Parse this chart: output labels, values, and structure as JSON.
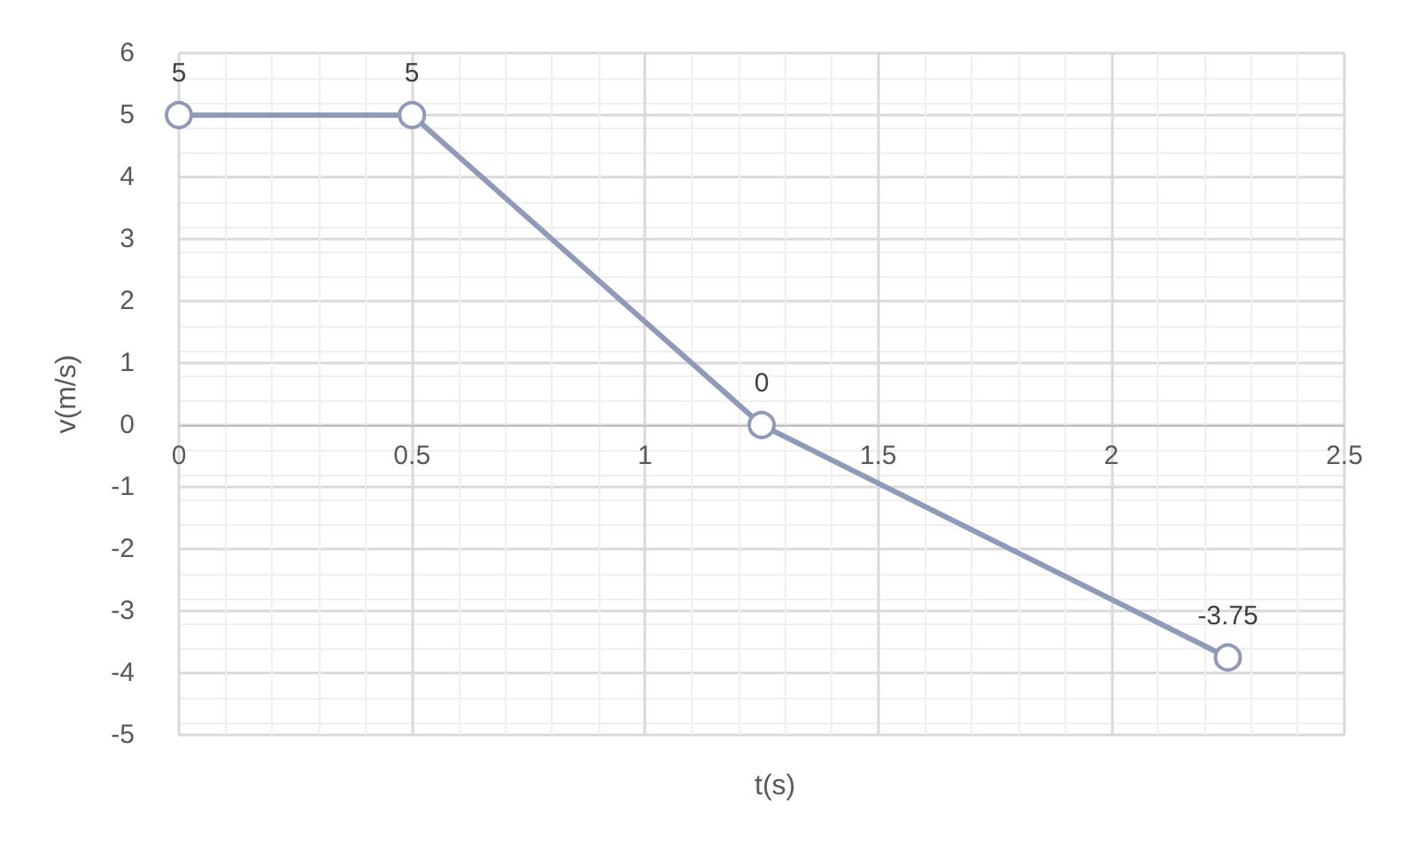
{
  "chart_data": {
    "type": "line",
    "xlabel": "t(s)",
    "ylabel": "v(m/s)",
    "x": [
      0,
      0.5,
      1.25,
      2.25
    ],
    "series": [
      {
        "color": "#8e9ab8",
        "values": [
          5,
          5,
          0,
          -3.75
        ]
      }
    ],
    "xlim": [
      0,
      2.5
    ],
    "xticks": [
      0,
      0.5,
      1,
      1.5,
      2,
      2.5
    ],
    "ylim": [
      -5,
      6
    ],
    "yticks": [
      -5,
      -4,
      -3,
      -2,
      -1,
      0,
      1,
      2,
      3,
      4,
      5,
      6
    ],
    "grid": true,
    "marker": "circle",
    "line_style": "solid",
    "data_labels": true
  }
}
